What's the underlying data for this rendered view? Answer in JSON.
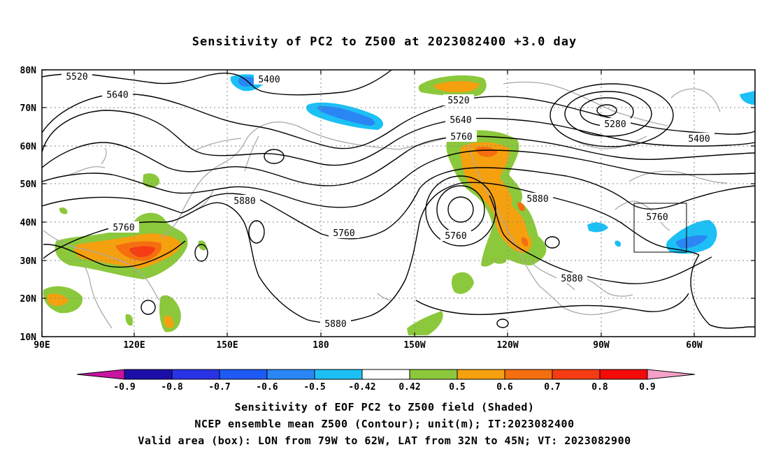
{
  "title": "Sensitivity of PC2 to Z500 at 2023082400 +3.0 day",
  "lat_ticks": [
    "80N",
    "70N",
    "60N",
    "50N",
    "40N",
    "30N",
    "20N",
    "10N"
  ],
  "lon_ticks": [
    "90E",
    "120E",
    "150E",
    "180",
    "150W",
    "120W",
    "90W",
    "60W"
  ],
  "contour_labels": [
    {
      "text": "5520"
    },
    {
      "text": "5640"
    },
    {
      "text": "5400"
    },
    {
      "text": "5520"
    },
    {
      "text": "5640"
    },
    {
      "text": "5760"
    },
    {
      "text": "5280"
    },
    {
      "text": "5400"
    },
    {
      "text": "5880"
    },
    {
      "text": "5760"
    },
    {
      "text": "5760"
    },
    {
      "text": "5760"
    },
    {
      "text": "5880"
    },
    {
      "text": "5760"
    },
    {
      "text": "5880"
    },
    {
      "text": "5880"
    }
  ],
  "colorbar": {
    "colors": [
      "#1c0ea8",
      "#2a32e6",
      "#1e5af5",
      "#2a86f5",
      "#1cc0f5",
      "#ffffff",
      "#8cc83c",
      "#f5a00f",
      "#f56e0f",
      "#f53c14",
      "#f50a0a"
    ],
    "left_arrow_color": "#c814a0",
    "right_arrow_color": "#f5a0c8",
    "labels": [
      "-0.9",
      "-0.8",
      "-0.7",
      "-0.6",
      "-0.5",
      "-0.42",
      "0.42",
      "0.5",
      "0.6",
      "0.7",
      "0.8",
      "0.9"
    ]
  },
  "captions": [
    "Sensitivity of EOF PC2 to Z500 field (Shaded)",
    "NCEP ensemble mean Z500 (Contour); unit(m); IT:2023082400",
    "Valid area (box): LON from 79W to 62W, LAT from 32N to 45N; VT: 2023082900"
  ]
}
